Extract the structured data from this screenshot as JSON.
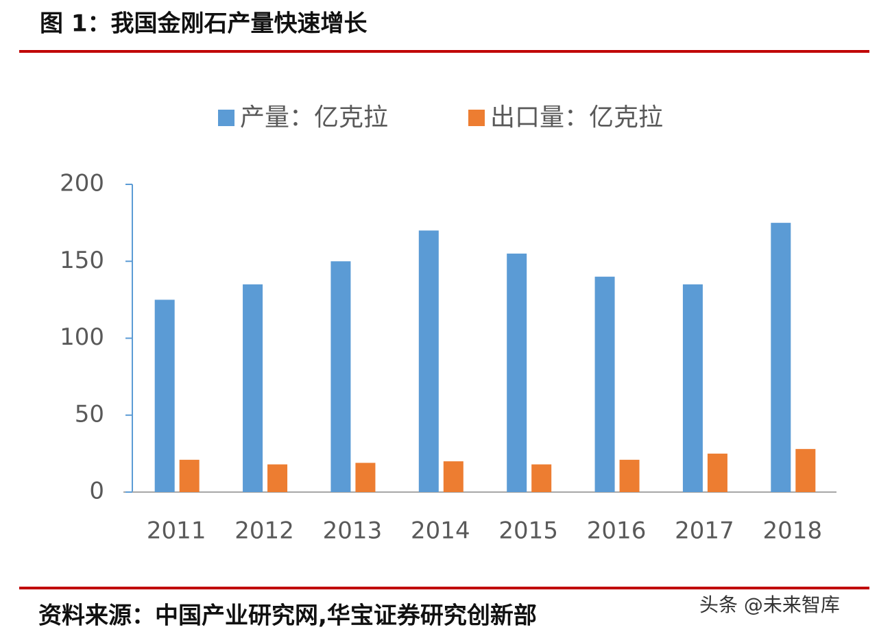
{
  "chart_data": {
    "type": "bar",
    "title": "图 1：我国金刚石产量快速增长",
    "categories": [
      "2011",
      "2012",
      "2013",
      "2014",
      "2015",
      "2016",
      "2017",
      "2018"
    ],
    "series": [
      {
        "name": "产量：亿克拉",
        "color": "#5b9bd5",
        "values": [
          125,
          135,
          150,
          170,
          155,
          140,
          135,
          175
        ]
      },
      {
        "name": "出口量：亿克拉",
        "color": "#ed7d31",
        "values": [
          21,
          18,
          19,
          20,
          18,
          21,
          25,
          28
        ]
      }
    ],
    "ylim": [
      0,
      200
    ],
    "yticks": [
      0,
      50,
      100,
      150,
      200
    ],
    "grid": false,
    "legend": "top",
    "source": "资料来源：中国产业研究网,华宝证券研究创新部",
    "watermark": "头条 @未来智库"
  }
}
